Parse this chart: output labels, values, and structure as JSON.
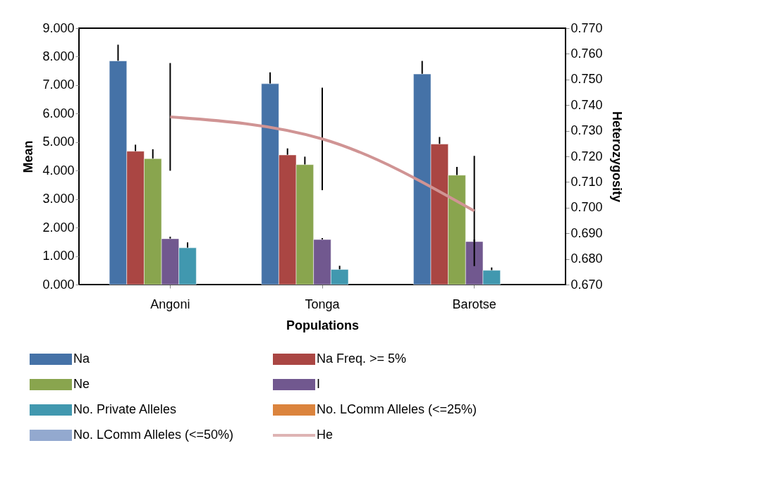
{
  "chart_data": {
    "type": "bar",
    "xlabel": "Populations",
    "ylabel": "Mean",
    "y2label": "Heterozygosity",
    "categories": [
      "Angoni",
      "Tonga",
      "Barotse"
    ],
    "series": [
      {
        "name": "Na",
        "color": "#4572a7",
        "values": [
          7.85,
          7.05,
          7.39
        ],
        "errors": [
          0.57,
          0.4,
          0.46
        ]
      },
      {
        "name": "Na Freq. >= 5%",
        "color": "#aa4643",
        "values": [
          4.68,
          4.55,
          4.93
        ],
        "errors": [
          0.23,
          0.23,
          0.25
        ]
      },
      {
        "name": "Ne",
        "color": "#89a54e",
        "values": [
          4.42,
          4.21,
          3.84
        ],
        "errors": [
          0.33,
          0.28,
          0.29
        ]
      },
      {
        "name": "I",
        "color": "#71588f",
        "values": [
          1.61,
          1.58,
          1.51
        ],
        "errors": [
          0.07,
          0.05,
          0.07
        ]
      },
      {
        "name": "No. Private Alleles",
        "color": "#4198af",
        "values": [
          1.29,
          0.53,
          0.5
        ],
        "errors": [
          0.19,
          0.13,
          0.1
        ]
      },
      {
        "name": "No. LComm Alleles (<=25%)",
        "color": "#db843d",
        "values": [
          null,
          null,
          null
        ]
      },
      {
        "name": "No. LComm Alleles (<=50%)",
        "color": "#93a9cf",
        "values": [
          null,
          null,
          null
        ]
      },
      {
        "name": "He",
        "type": "line",
        "axis": "y2",
        "color": "#d09494",
        "values": [
          0.7354,
          0.7268,
          0.6987
        ],
        "errors": [
          0.021,
          0.02,
          0.0215
        ]
      }
    ],
    "ylim": [
      0,
      9
    ],
    "yticks": [
      {
        "value": 0,
        "label": "0.000"
      },
      {
        "value": 1,
        "label": "1.000"
      },
      {
        "value": 2,
        "label": "2.000"
      },
      {
        "value": 3,
        "label": "3.000"
      },
      {
        "value": 4,
        "label": "4.000"
      },
      {
        "value": 5,
        "label": "5.000"
      },
      {
        "value": 6,
        "label": "6.000"
      },
      {
        "value": 7,
        "label": "7.000"
      },
      {
        "value": 8,
        "label": "8.000"
      },
      {
        "value": 9,
        "label": "9.000"
      }
    ],
    "y2lim": [
      0.67,
      0.77
    ],
    "y2ticks": [
      {
        "value": 0.67,
        "label": "0.670"
      },
      {
        "value": 0.68,
        "label": "0.680"
      },
      {
        "value": 0.69,
        "label": "0.690"
      },
      {
        "value": 0.7,
        "label": "0.700"
      },
      {
        "value": 0.71,
        "label": "0.710"
      },
      {
        "value": 0.72,
        "label": "0.720"
      },
      {
        "value": 0.73,
        "label": "0.730"
      },
      {
        "value": 0.74,
        "label": "0.740"
      },
      {
        "value": 0.75,
        "label": "0.750"
      },
      {
        "value": 0.76,
        "label": "0.760"
      },
      {
        "value": 0.77,
        "label": "0.770"
      }
    ],
    "legend": "bottom",
    "line_style": "solid"
  }
}
